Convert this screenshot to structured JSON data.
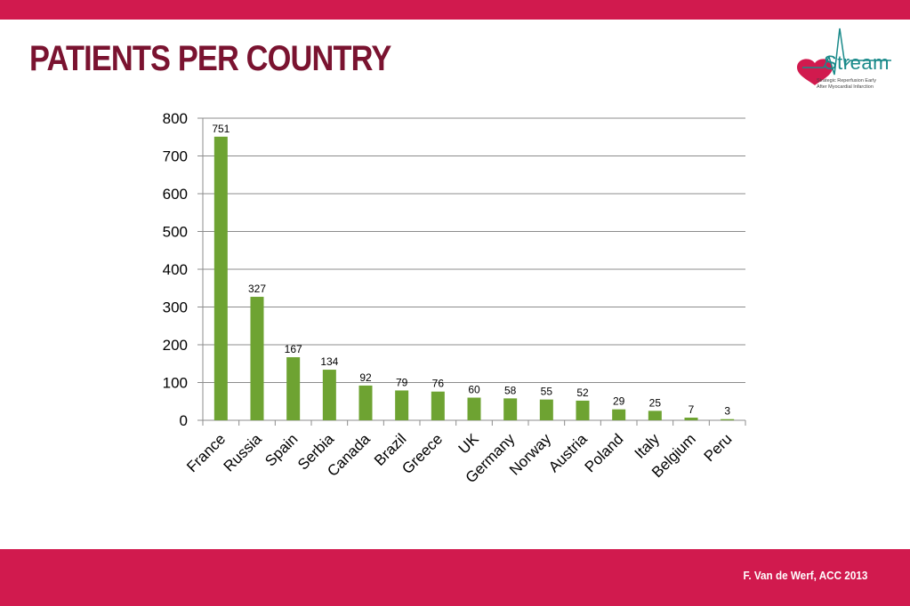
{
  "slide": {
    "title": "PATIENTS PER COUNTRY",
    "footer": "F. Van de Werf, ACC 2013",
    "logo": {
      "word": "Stream",
      "tagline_1": "Strategic Reperfusion Early",
      "tagline_2": "After Myocardial Infarction",
      "icon": "heart-ecg-icon"
    },
    "colors": {
      "band": "#d11a4e",
      "title": "#7a1330",
      "bar": "#6ea332",
      "logo_heart": "#d11a4e",
      "logo_text": "#1a8a8a"
    }
  },
  "chart_data": {
    "type": "bar",
    "categories": [
      "France",
      "Russia",
      "Spain",
      "Serbia",
      "Canada",
      "Brazil",
      "Greece",
      "UK",
      "Germany",
      "Norway",
      "Austria",
      "Poland",
      "Italy",
      "Belgium",
      "Peru"
    ],
    "values": [
      751,
      327,
      167,
      134,
      92,
      79,
      76,
      60,
      58,
      55,
      52,
      29,
      25,
      7,
      3
    ],
    "ylim": [
      0,
      800
    ],
    "yticks": [
      0,
      100,
      200,
      300,
      400,
      500,
      600,
      700,
      800
    ],
    "grid": true,
    "legend": "none",
    "data_labels": true
  }
}
